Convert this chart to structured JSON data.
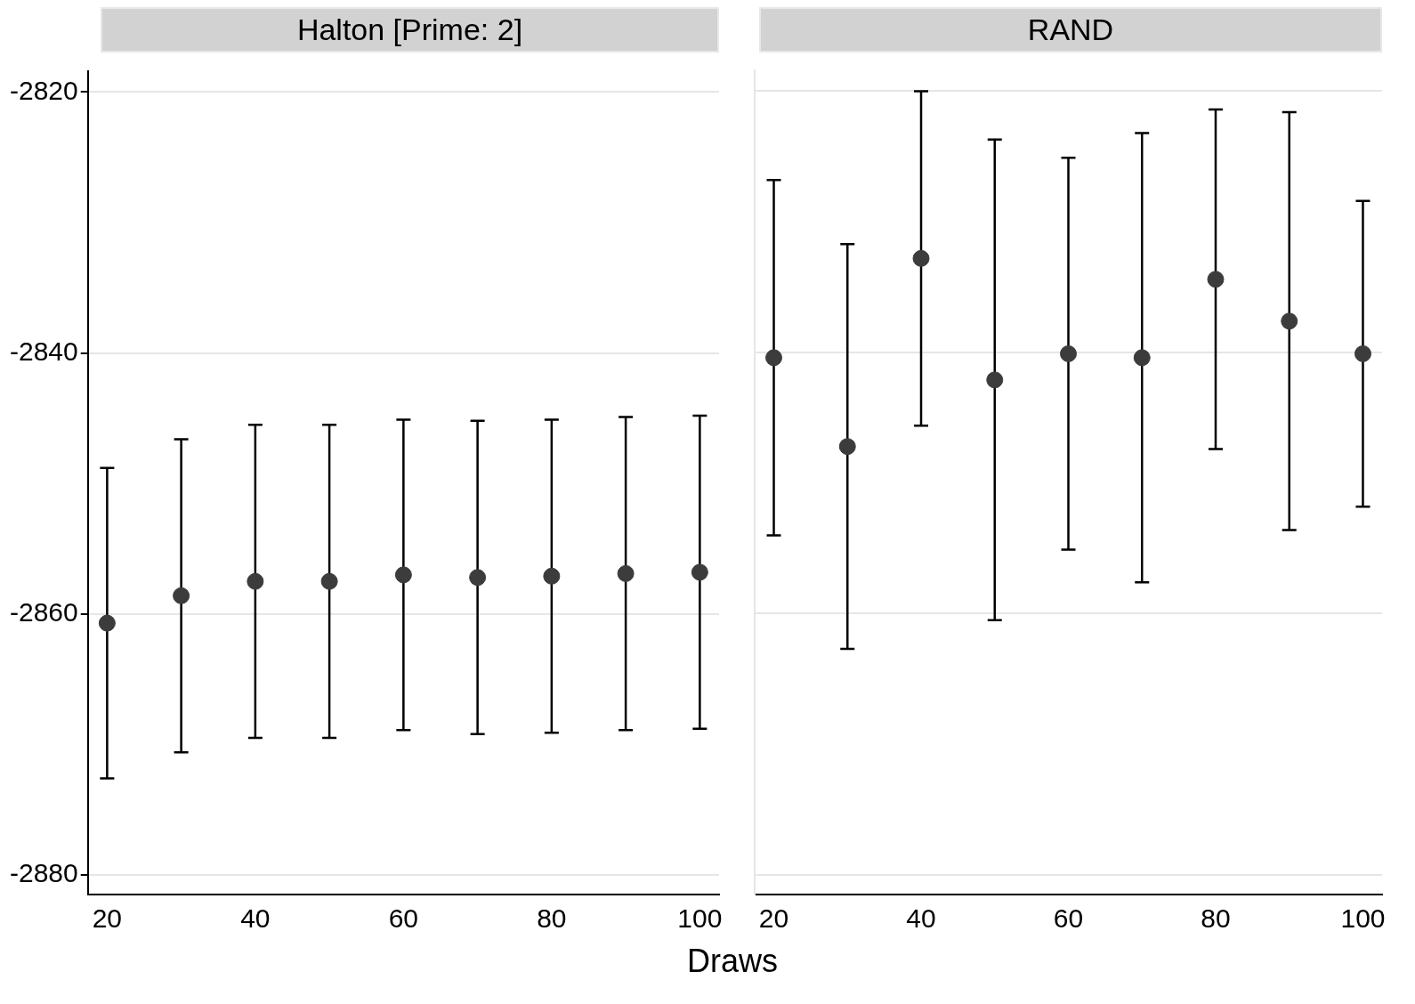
{
  "chart_data": [
    {
      "type": "scatter",
      "title": "Halton [Prime: 2]",
      "xlabel": "Draws",
      "x": [
        20,
        30,
        40,
        50,
        60,
        70,
        80,
        90,
        100
      ],
      "series": [
        {
          "color": "#3c3c3c",
          "values": [
            -2860.7,
            -2858.6,
            -2857.5,
            -2857.5,
            -2857.0,
            -2857.2,
            -2857.1,
            -2856.9,
            -2856.8
          ],
          "errors": [
            11.9,
            12.0,
            12.0,
            12.0,
            11.9,
            12.0,
            12.0,
            12.0,
            12.0
          ]
        }
      ],
      "xlim": [
        17.4,
        102.6
      ],
      "xticks": [
        20,
        40,
        60,
        80,
        100
      ],
      "ylim": [
        -2881.5,
        -2818.4
      ],
      "yticks": [
        -2880,
        -2860,
        -2840,
        -2820
      ],
      "grid": "y",
      "marker": "circle",
      "legend": false
    },
    {
      "type": "scatter",
      "title": "RAND",
      "x": [
        20,
        30,
        40,
        50,
        60,
        70,
        80,
        90,
        100
      ],
      "series": [
        {
          "color": "#3c3c3c",
          "values": [
            -2840.4,
            -2847.2,
            -2832.8,
            -2842.1,
            -2840.1,
            -2840.4,
            -2834.4,
            -2837.6,
            -2840.1
          ],
          "errors": [
            13.6,
            15.5,
            12.8,
            18.4,
            15.0,
            17.2,
            13.0,
            16.0,
            11.7
          ]
        }
      ],
      "xlim": [
        17.4,
        102.6
      ],
      "xticks": [
        20,
        40,
        60,
        80,
        100
      ],
      "ylim": [
        -2881.5,
        -2818.4
      ],
      "yticks": [
        -2880,
        -2860,
        -2840,
        -2820
      ],
      "grid": "y",
      "marker": "circle",
      "legend": false,
      "tick_labels": "x"
    }
  ]
}
